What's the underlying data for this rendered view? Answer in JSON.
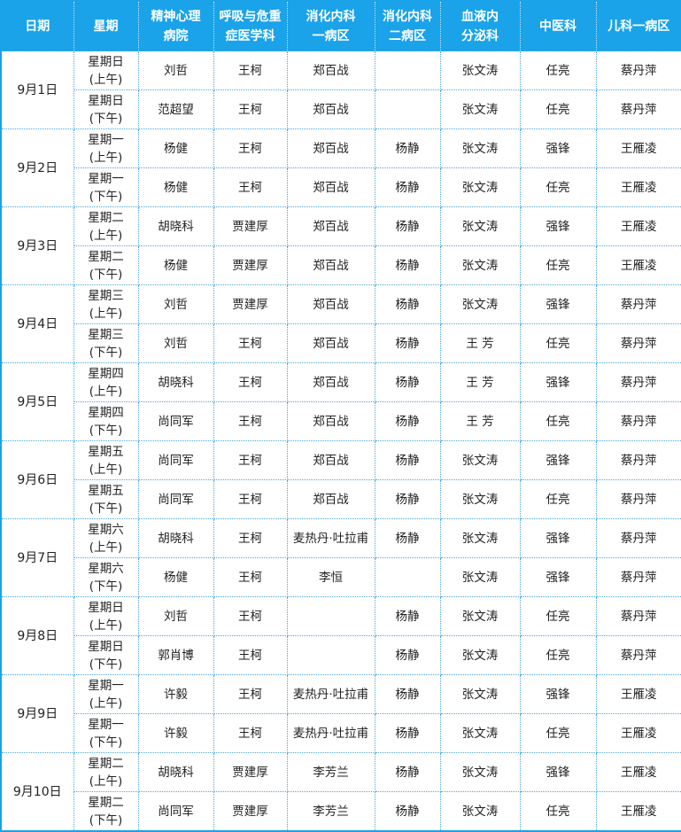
{
  "headers": [
    "日期",
    "星期",
    "精神心理\n病院",
    "呼吸与危重\n症医学科",
    "消化内科\n一病区",
    "消化内科\n二病区",
    "血液内\n分泌科",
    "中医科",
    "儿科一病区"
  ],
  "days": [
    {
      "date": "9月1日",
      "rows": [
        {
          "week": "星期日",
          "half": "(上午)",
          "cells": [
            "刘哲",
            "王柯",
            "郑百战",
            "",
            "张文涛",
            "任亮",
            "蔡丹萍"
          ]
        },
        {
          "week": "星期日",
          "half": "(下午)",
          "cells": [
            "范超望",
            "王柯",
            "郑百战",
            "",
            "张文涛",
            "任亮",
            "蔡丹萍"
          ]
        }
      ]
    },
    {
      "date": "9月2日",
      "rows": [
        {
          "week": "星期一",
          "half": "(上午)",
          "cells": [
            "杨健",
            "王柯",
            "郑百战",
            "杨静",
            "张文涛",
            "强锋",
            "王雁凌"
          ]
        },
        {
          "week": "星期一",
          "half": "(下午)",
          "cells": [
            "杨健",
            "王柯",
            "郑百战",
            "杨静",
            "张文涛",
            "任亮",
            "王雁凌"
          ]
        }
      ]
    },
    {
      "date": "9月3日",
      "rows": [
        {
          "week": "星期二",
          "half": "(上午)",
          "cells": [
            "胡晓科",
            "贾建厚",
            "郑百战",
            "杨静",
            "张文涛",
            "强锋",
            "王雁凌"
          ]
        },
        {
          "week": "星期二",
          "half": "(下午)",
          "cells": [
            "杨健",
            "贾建厚",
            "郑百战",
            "杨静",
            "张文涛",
            "任亮",
            "王雁凌"
          ]
        }
      ]
    },
    {
      "date": "9月4日",
      "rows": [
        {
          "week": "星期三",
          "half": "(上午)",
          "cells": [
            "刘哲",
            "贾建厚",
            "郑百战",
            "杨静",
            "张文涛",
            "强锋",
            "蔡丹萍"
          ]
        },
        {
          "week": "星期三",
          "half": "(下午)",
          "cells": [
            "刘哲",
            "王柯",
            "郑百战",
            "杨静",
            "王  芳",
            "任亮",
            "蔡丹萍"
          ]
        }
      ]
    },
    {
      "date": "9月5日",
      "rows": [
        {
          "week": "星期四",
          "half": "(上午)",
          "cells": [
            "胡晓科",
            "王柯",
            "郑百战",
            "杨静",
            "王  芳",
            "强锋",
            "蔡丹萍"
          ]
        },
        {
          "week": "星期四",
          "half": "(下午)",
          "cells": [
            "尚同军",
            "王柯",
            "郑百战",
            "杨静",
            "王  芳",
            "任亮",
            "蔡丹萍"
          ]
        }
      ]
    },
    {
      "date": "9月6日",
      "rows": [
        {
          "week": "星期五",
          "half": "(上午)",
          "cells": [
            "尚同军",
            "王柯",
            "郑百战",
            "杨静",
            "张文涛",
            "强锋",
            "蔡丹萍"
          ]
        },
        {
          "week": "星期五",
          "half": "(下午)",
          "cells": [
            "尚同军",
            "王柯",
            "郑百战",
            "杨静",
            "张文涛",
            "任亮",
            "蔡丹萍"
          ]
        }
      ]
    },
    {
      "date": "9月7日",
      "rows": [
        {
          "week": "星期六",
          "half": "(上午)",
          "cells": [
            "胡晓科",
            "王柯",
            "麦热丹·吐拉甫",
            "杨静",
            "张文涛",
            "强锋",
            "蔡丹萍"
          ]
        },
        {
          "week": "星期六",
          "half": "(下午)",
          "cells": [
            "杨健",
            "王柯",
            "李恒",
            "",
            "张文涛",
            "强锋",
            "蔡丹萍"
          ]
        }
      ]
    },
    {
      "date": "9月8日",
      "rows": [
        {
          "week": "星期日",
          "half": "(上午)",
          "cells": [
            "刘哲",
            "王柯",
            "",
            "杨静",
            "张文涛",
            "任亮",
            "蔡丹萍"
          ]
        },
        {
          "week": "星期日",
          "half": "(下午)",
          "cells": [
            "郭肖博",
            "王柯",
            "",
            "杨静",
            "张文涛",
            "任亮",
            "蔡丹萍"
          ]
        }
      ]
    },
    {
      "date": "9月9日",
      "rows": [
        {
          "week": "星期一",
          "half": "(上午)",
          "cells": [
            "许毅",
            "王柯",
            "麦热丹·吐拉甫",
            "杨静",
            "张文涛",
            "强锋",
            "王雁凌"
          ]
        },
        {
          "week": "星期一",
          "half": "(下午)",
          "cells": [
            "许毅",
            "王柯",
            "麦热丹·吐拉甫",
            "杨静",
            "张文涛",
            "任亮",
            "王雁凌"
          ]
        }
      ]
    },
    {
      "date": "9月10日",
      "rows": [
        {
          "week": "星期二",
          "half": "(上午)",
          "cells": [
            "胡晓科",
            "贾建厚",
            "李芳兰",
            "杨静",
            "张文涛",
            "强锋",
            "王雁凌"
          ]
        },
        {
          "week": "星期二",
          "half": "(下午)",
          "cells": [
            "尚同军",
            "贾建厚",
            "李芳兰",
            "杨静",
            "张文涛",
            "任亮",
            "王雁凌"
          ]
        }
      ]
    }
  ],
  "colors": {
    "header_bg": "#1aa3e8",
    "header_text": "#ffffff",
    "grid": "#4aa6dc"
  }
}
